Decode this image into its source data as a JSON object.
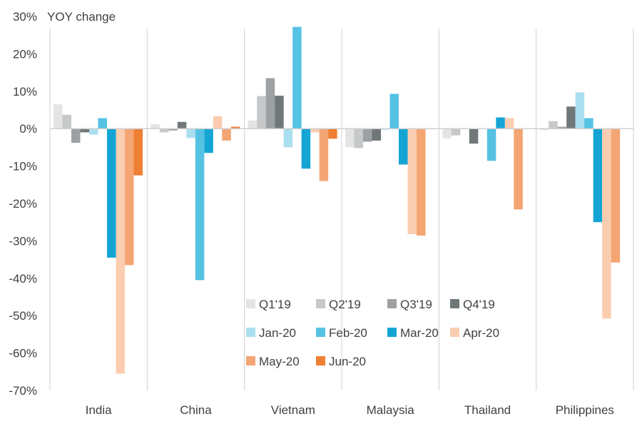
{
  "chart_data": {
    "type": "bar",
    "ylabel": "YOY change",
    "ylim": [
      -70,
      30
    ],
    "yticks": [
      "30%",
      "20%",
      "10%",
      "0%",
      "-10%",
      "-20%",
      "-30%",
      "-40%",
      "-50%",
      "-60%",
      "-70%"
    ],
    "tick_values": [
      30,
      20,
      10,
      0,
      -10,
      -20,
      -30,
      -40,
      -50,
      -60,
      -70
    ],
    "categories": [
      "India",
      "China",
      "Vietnam",
      "Malaysia",
      "Thailand",
      "Philippines"
    ],
    "legend_position": "bottom-center (inside plot)",
    "series": [
      {
        "name": "Q1'19",
        "color": "#e3e4e4",
        "values": [
          6.5,
          1.2,
          2.2,
          -5.0,
          -2.6,
          -0.4
        ]
      },
      {
        "name": "Q2'19",
        "color": "#c6c8ca",
        "values": [
          3.7,
          -1.0,
          8.7,
          -5.2,
          -1.8,
          2.0
        ]
      },
      {
        "name": "Q3'19",
        "color": "#9da1a4",
        "values": [
          -3.8,
          -0.5,
          13.5,
          -3.5,
          0.0,
          0.5
        ]
      },
      {
        "name": "Q4'19",
        "color": "#6f7779",
        "values": [
          -1.0,
          1.8,
          8.8,
          -3.2,
          -4.0,
          5.9
        ]
      },
      {
        "name": "Jan-20",
        "color": "#aadff0",
        "values": [
          -1.6,
          -2.5,
          -5.0,
          -0.3,
          0.0,
          9.7
        ]
      },
      {
        "name": "Feb-20",
        "color": "#56c2e3",
        "values": [
          2.8,
          -40.5,
          27.2,
          9.3,
          -8.6,
          2.8
        ]
      },
      {
        "name": "Mar-20",
        "color": "#14a5d5",
        "values": [
          -34.5,
          -6.5,
          -10.7,
          -9.6,
          3.0,
          -25.0
        ]
      },
      {
        "name": "Apr-20",
        "color": "#fbcdb0",
        "values": [
          -65.5,
          3.3,
          -1.0,
          -28.2,
          2.8,
          -50.8
        ]
      },
      {
        "name": "May-20",
        "color": "#f4a574",
        "values": [
          -36.5,
          -3.2,
          -14.0,
          -28.6,
          -21.6,
          -35.8
        ]
      },
      {
        "name": "Jun-20",
        "color": "#ee7f33",
        "values": [
          -12.5,
          0.5,
          -2.7,
          0.0,
          0.0,
          0.0
        ]
      }
    ]
  }
}
